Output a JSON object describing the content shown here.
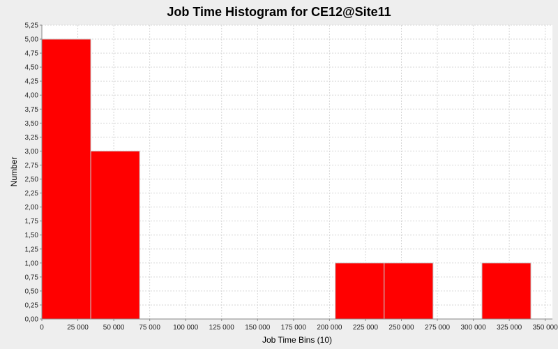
{
  "chart_data": {
    "type": "bar",
    "title": "Job Time Histogram for CE12@Site11",
    "xlabel": "Job Time Bins (10)",
    "ylabel": "Number",
    "xlim": [
      0,
      355000
    ],
    "ylim": [
      0,
      5.25
    ],
    "x_ticks": [
      {
        "value": 0,
        "label": "0"
      },
      {
        "value": 25000,
        "label": "25 000"
      },
      {
        "value": 50000,
        "label": "50 000"
      },
      {
        "value": 75000,
        "label": "75 000"
      },
      {
        "value": 100000,
        "label": "100 000"
      },
      {
        "value": 125000,
        "label": "125 000"
      },
      {
        "value": 150000,
        "label": "150 000"
      },
      {
        "value": 175000,
        "label": "175 000"
      },
      {
        "value": 200000,
        "label": "200 000"
      },
      {
        "value": 225000,
        "label": "225 000"
      },
      {
        "value": 250000,
        "label": "250 000"
      },
      {
        "value": 275000,
        "label": "275 000"
      },
      {
        "value": 300000,
        "label": "300 000"
      },
      {
        "value": 325000,
        "label": "325 000"
      },
      {
        "value": 350000,
        "label": "350 000"
      }
    ],
    "y_ticks": [
      {
        "value": 0,
        "label": "0,00"
      },
      {
        "value": 0.25,
        "label": "0,25"
      },
      {
        "value": 0.5,
        "label": "0,50"
      },
      {
        "value": 0.75,
        "label": "0,75"
      },
      {
        "value": 1,
        "label": "1,00"
      },
      {
        "value": 1.25,
        "label": "1,25"
      },
      {
        "value": 1.5,
        "label": "1,50"
      },
      {
        "value": 1.75,
        "label": "1,75"
      },
      {
        "value": 2,
        "label": "2,00"
      },
      {
        "value": 2.25,
        "label": "2,25"
      },
      {
        "value": 2.5,
        "label": "2,50"
      },
      {
        "value": 2.75,
        "label": "2,75"
      },
      {
        "value": 3,
        "label": "3,00"
      },
      {
        "value": 3.25,
        "label": "3,25"
      },
      {
        "value": 3.5,
        "label": "3,50"
      },
      {
        "value": 3.75,
        "label": "3,75"
      },
      {
        "value": 4,
        "label": "4,00"
      },
      {
        "value": 4.25,
        "label": "4,25"
      },
      {
        "value": 4.5,
        "label": "4,50"
      },
      {
        "value": 4.75,
        "label": "4,75"
      },
      {
        "value": 5,
        "label": "5,00"
      },
      {
        "value": 5.25,
        "label": "5,25"
      }
    ],
    "bins": [
      {
        "start": 0,
        "end": 34000,
        "count": 5
      },
      {
        "start": 34000,
        "end": 68000,
        "count": 3
      },
      {
        "start": 68000,
        "end": 102000,
        "count": 0
      },
      {
        "start": 102000,
        "end": 136000,
        "count": 0
      },
      {
        "start": 136000,
        "end": 170000,
        "count": 0
      },
      {
        "start": 170000,
        "end": 204000,
        "count": 0
      },
      {
        "start": 204000,
        "end": 238000,
        "count": 1
      },
      {
        "start": 238000,
        "end": 272000,
        "count": 1
      },
      {
        "start": 272000,
        "end": 306000,
        "count": 0
      },
      {
        "start": 306000,
        "end": 340000,
        "count": 1
      }
    ],
    "grid": true,
    "legend": "none",
    "colors": {
      "bar": "#ff0000",
      "bar_outline": "#c8c8c8",
      "plot_background": "#ffffff",
      "gridline": "#d6d6d6",
      "figure_background": "#eeeeee"
    }
  }
}
